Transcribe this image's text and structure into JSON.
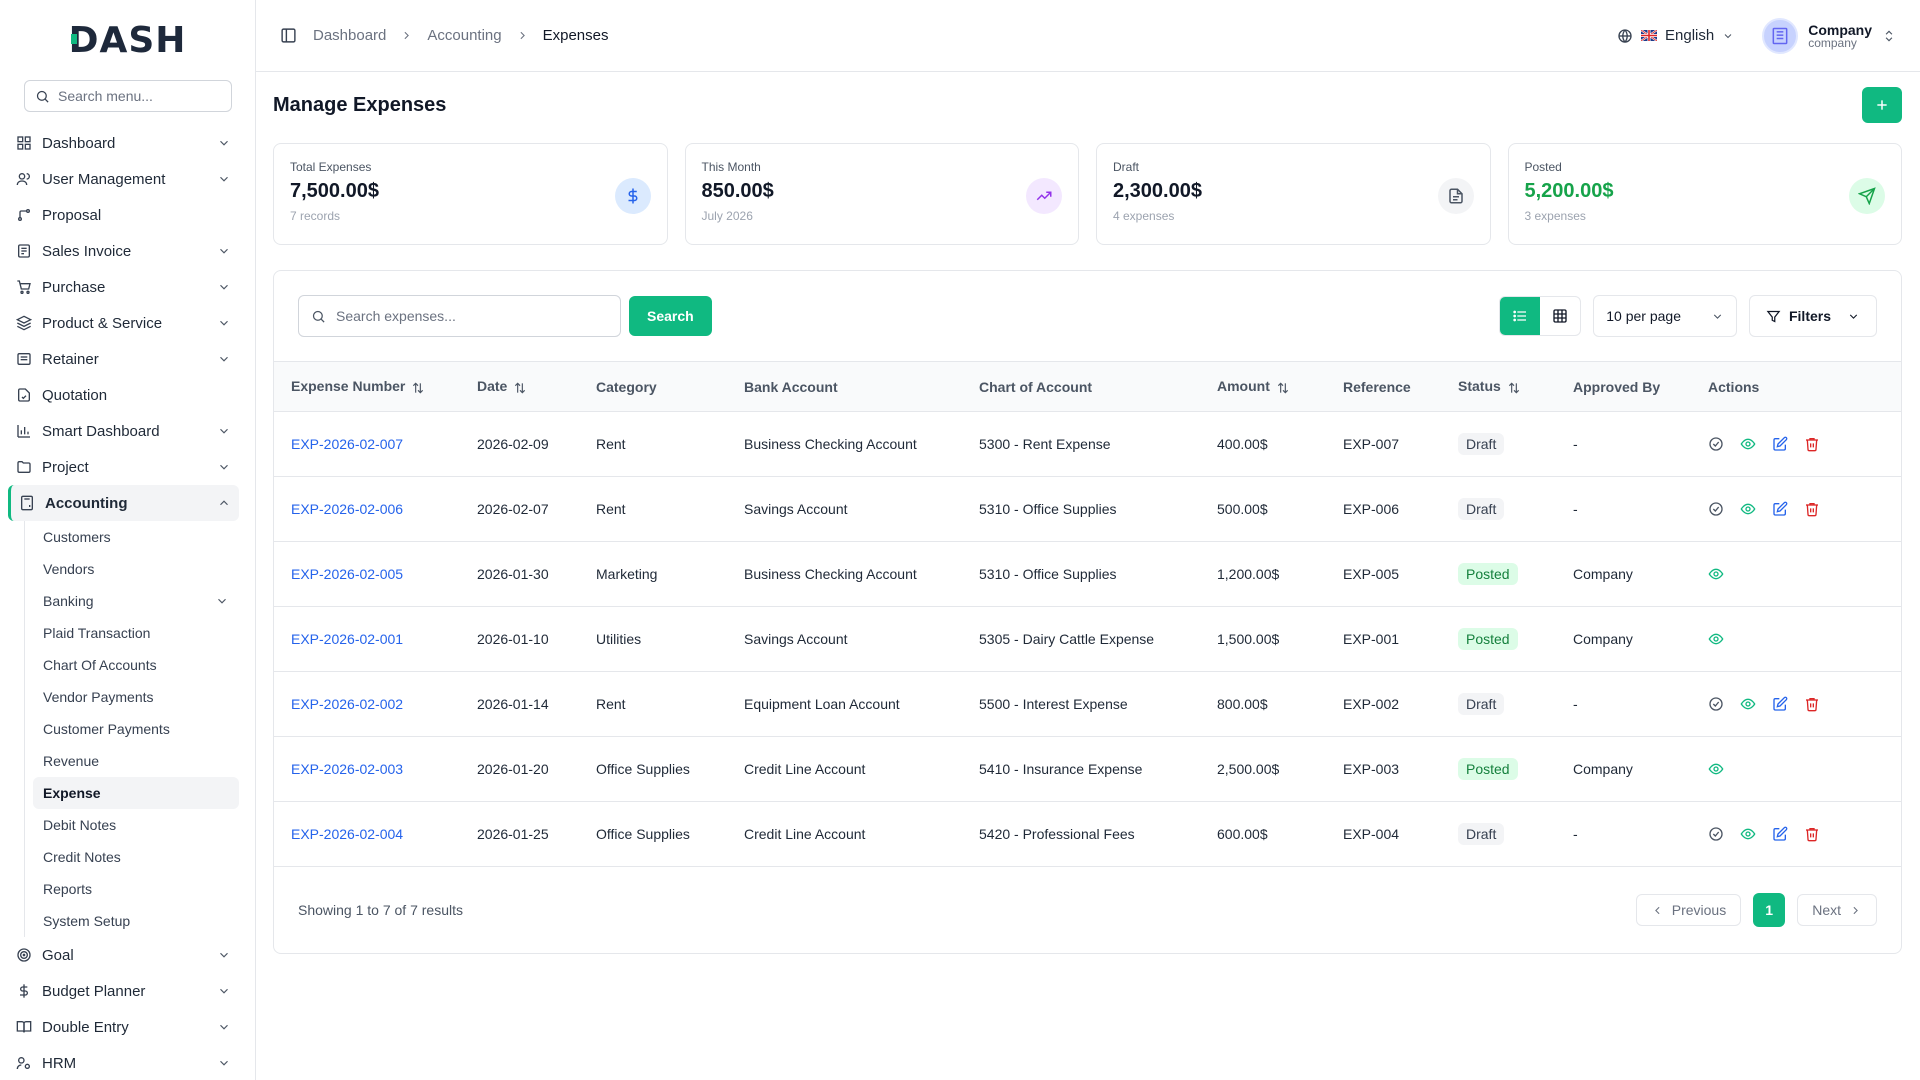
{
  "logo": {
    "text_a": "D",
    "text_b": "ASH"
  },
  "sidebar": {
    "search_placeholder": "Search menu...",
    "items": [
      {
        "label": "Dashboard"
      },
      {
        "label": "User Management"
      },
      {
        "label": "Proposal"
      },
      {
        "label": "Sales Invoice"
      },
      {
        "label": "Purchase"
      },
      {
        "label": "Product & Service"
      },
      {
        "label": "Retainer"
      },
      {
        "label": "Quotation"
      },
      {
        "label": "Smart Dashboard"
      },
      {
        "label": "Project"
      },
      {
        "label": "Accounting"
      },
      {
        "label": "Goal"
      },
      {
        "label": "Budget Planner"
      },
      {
        "label": "Double Entry"
      },
      {
        "label": "HRM"
      }
    ],
    "accounting_sub": [
      {
        "label": "Customers"
      },
      {
        "label": "Vendors"
      },
      {
        "label": "Banking"
      },
      {
        "label": "Plaid Transaction"
      },
      {
        "label": "Chart Of Accounts"
      },
      {
        "label": "Vendor Payments"
      },
      {
        "label": "Customer Payments"
      },
      {
        "label": "Revenue"
      },
      {
        "label": "Expense"
      },
      {
        "label": "Debit Notes"
      },
      {
        "label": "Credit Notes"
      },
      {
        "label": "Reports"
      },
      {
        "label": "System Setup"
      }
    ]
  },
  "header": {
    "breadcrumbs": [
      "Dashboard",
      "Accounting",
      "Expenses"
    ],
    "language": "English",
    "company_name": "Company",
    "company_role": "company"
  },
  "page": {
    "title": "Manage Expenses"
  },
  "stats": [
    {
      "title": "Total Expenses",
      "value": "7,500.00$",
      "sub": "7 records",
      "color": "#2563eb",
      "bg": "#dbeafe"
    },
    {
      "title": "This Month",
      "value": "850.00$",
      "sub": "July 2026",
      "color": "#9333ea",
      "bg": "#f3e8ff"
    },
    {
      "title": "Draft",
      "value": "2,300.00$",
      "sub": "4 expenses",
      "color": "#4b5563",
      "bg": "#f3f4f6"
    },
    {
      "title": "Posted",
      "value": "5,200.00$",
      "sub": "3 expenses",
      "color": "#16a34a",
      "bg": "#dcfce7"
    }
  ],
  "toolbar": {
    "search_placeholder": "Search expenses...",
    "search_button": "Search",
    "per_page": "10 per page",
    "filters": "Filters"
  },
  "table": {
    "columns": [
      "Expense Number",
      "Date",
      "Category",
      "Bank Account",
      "Chart of Account",
      "Amount",
      "Reference",
      "Status",
      "Approved By",
      "Actions"
    ],
    "rows": [
      {
        "number": "EXP-2026-02-007",
        "date": "2026-02-09",
        "category": "Rent",
        "bank": "Business Checking Account",
        "chart": "5300 - Rent Expense",
        "amount": "400.00$",
        "reference": "EXP-007",
        "status": "Draft",
        "approved_by": "-"
      },
      {
        "number": "EXP-2026-02-006",
        "date": "2026-02-07",
        "category": "Rent",
        "bank": "Savings Account",
        "chart": "5310 - Office Supplies",
        "amount": "500.00$",
        "reference": "EXP-006",
        "status": "Draft",
        "approved_by": "-"
      },
      {
        "number": "EXP-2026-02-005",
        "date": "2026-01-30",
        "category": "Marketing",
        "bank": "Business Checking Account",
        "chart": "5310 - Office Supplies",
        "amount": "1,200.00$",
        "reference": "EXP-005",
        "status": "Posted",
        "approved_by": "Company"
      },
      {
        "number": "EXP-2026-02-001",
        "date": "2026-01-10",
        "category": "Utilities",
        "bank": "Savings Account",
        "chart": "5305 - Dairy Cattle Expense",
        "amount": "1,500.00$",
        "reference": "EXP-001",
        "status": "Posted",
        "approved_by": "Company"
      },
      {
        "number": "EXP-2026-02-002",
        "date": "2026-01-14",
        "category": "Rent",
        "bank": "Equipment Loan Account",
        "chart": "5500 - Interest Expense",
        "amount": "800.00$",
        "reference": "EXP-002",
        "status": "Draft",
        "approved_by": "-"
      },
      {
        "number": "EXP-2026-02-003",
        "date": "2026-01-20",
        "category": "Office Supplies",
        "bank": "Credit Line Account",
        "chart": "5410 - Insurance Expense",
        "amount": "2,500.00$",
        "reference": "EXP-003",
        "status": "Posted",
        "approved_by": "Company"
      },
      {
        "number": "EXP-2026-02-004",
        "date": "2026-01-25",
        "category": "Office Supplies",
        "bank": "Credit Line Account",
        "chart": "5420 - Professional Fees",
        "amount": "600.00$",
        "reference": "EXP-004",
        "status": "Draft",
        "approved_by": "-"
      }
    ]
  },
  "pagination": {
    "info": "Showing 1 to 7 of 7 results",
    "previous": "Previous",
    "current": "1",
    "next": "Next"
  },
  "colors": {
    "accent": "#10b981",
    "link": "#2563eb",
    "danger": "#dc2626"
  }
}
